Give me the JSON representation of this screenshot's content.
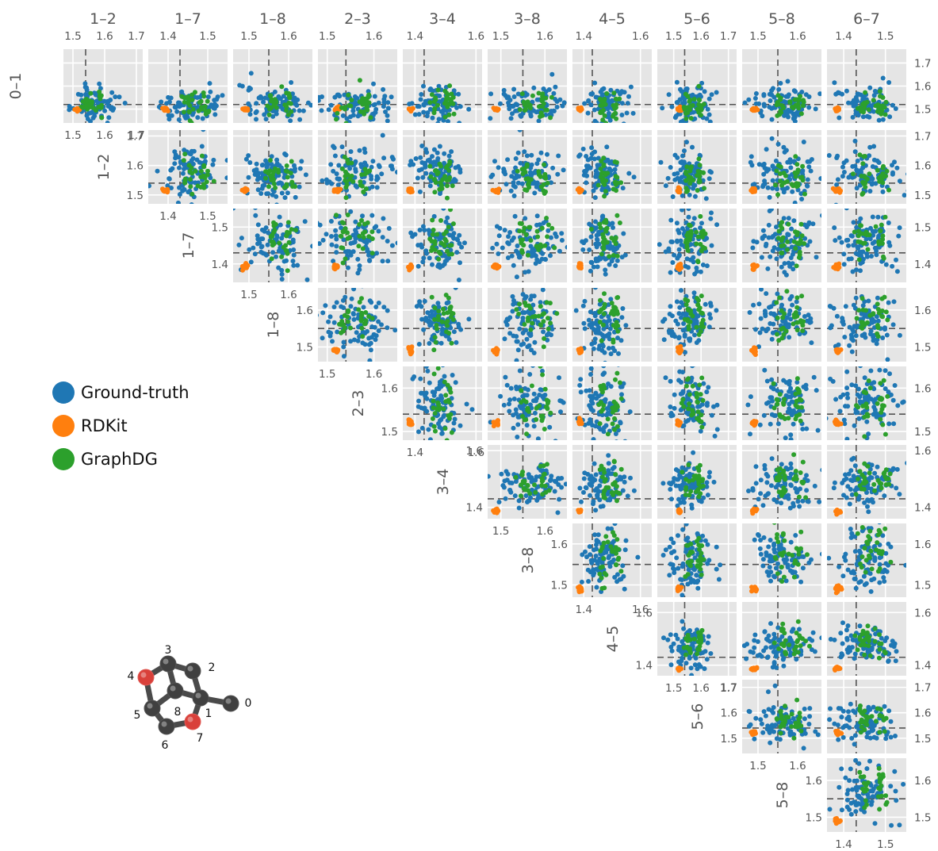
{
  "chart_data": {
    "type": "scatter",
    "bonds": [
      "0–1",
      "1–2",
      "1–7",
      "1–8",
      "2–3",
      "3–4",
      "3–8",
      "4–5",
      "5–6",
      "5–8",
      "6–7"
    ],
    "column_labels": [
      "1–2",
      "1–7",
      "1–8",
      "2–3",
      "3–4",
      "3–8",
      "4–5",
      "5–6",
      "5–8",
      "6–7"
    ],
    "row_labels": [
      "0–1",
      "1–2",
      "1–7",
      "1–8",
      "2–3",
      "3–4",
      "3–8",
      "4–5",
      "5–6",
      "5–8"
    ],
    "reference_lengths": {
      "0–1": 1.52,
      "1–2": 1.54,
      "1–7": 1.43,
      "1–8": 1.55,
      "2–3": 1.54,
      "3–4": 1.43,
      "3–8": 1.55,
      "4–5": 1.43,
      "5–6": 1.54,
      "5–8": 1.55,
      "6–7": 1.43
    },
    "axis_ranges": {
      "0–1": [
        1.44,
        1.76
      ],
      "1–2": [
        1.47,
        1.72
      ],
      "1–7": [
        1.35,
        1.55
      ],
      "1–8": [
        1.46,
        1.66
      ],
      "2–3": [
        1.48,
        1.65
      ],
      "3–4": [
        1.36,
        1.62
      ],
      "3–8": [
        1.47,
        1.65
      ],
      "4–5": [
        1.36,
        1.64
      ],
      "5–6": [
        1.44,
        1.73
      ],
      "5–8": [
        1.46,
        1.66
      ],
      "6–7": [
        1.36,
        1.55
      ]
    },
    "column_ticks": {
      "1–2": [
        "1.5",
        "1.6",
        "1.7"
      ],
      "1–7": [
        "1.4",
        "1.5"
      ],
      "1–8": [
        "1.5",
        "1.6"
      ],
      "2–3": [
        "1.5",
        "1.6"
      ],
      "3–4": [
        "1.4",
        "1.6"
      ],
      "3–8": [
        "1.5",
        "1.6"
      ],
      "4–5": [
        "1.4",
        "1.6"
      ],
      "5–6": [
        "1.5",
        "1.6",
        "1.7"
      ],
      "5–8": [
        "1.5",
        "1.6"
      ],
      "6–7": [
        "1.4",
        "1.5"
      ]
    },
    "row_ticks": {
      "0–1": [
        "1.5",
        "1.6",
        "1.7"
      ],
      "1–2": [
        "1.5",
        "1.6",
        "1.7"
      ],
      "1–7": [
        "1.4",
        "1.5"
      ],
      "1–8": [
        "1.5",
        "1.6"
      ],
      "2–3": [
        "1.5",
        "1.6"
      ],
      "3–4": [
        "1.4",
        "1.6"
      ],
      "3–8": [
        "1.5",
        "1.6"
      ],
      "4–5": [
        "1.4",
        "1.6"
      ],
      "5–6": [
        "1.5",
        "1.6",
        "1.7"
      ],
      "5–8": [
        "1.5",
        "1.6"
      ]
    },
    "series": [
      {
        "name": "Ground-truth",
        "color": "#1f77b4",
        "center": {
          "0–1": 1.52,
          "1–2": 1.575,
          "1–7": 1.455,
          "1–8": 1.565,
          "2–3": 1.565,
          "3–4": 1.48,
          "3–8": 1.565,
          "4–5": 1.47,
          "5–6": 1.56,
          "5–8": 1.565,
          "6–7": 1.455
        },
        "spread": 0.055,
        "points_per_panel": 85
      },
      {
        "name": "RDKit",
        "color": "#ff7f0e",
        "center": {
          "0–1": 1.5,
          "1–2": 1.515,
          "1–7": 1.392,
          "1–8": 1.49,
          "2–3": 1.52,
          "3–4": 1.386,
          "3–8": 1.49,
          "4–5": 1.387,
          "5–6": 1.52,
          "5–8": 1.49,
          "6–7": 1.385
        },
        "spread": 0.005,
        "points_per_panel": 14
      },
      {
        "name": "GraphDG",
        "color": "#2ca02c",
        "center": {
          "0–1": 1.52,
          "1–2": 1.56,
          "1–7": 1.47,
          "1–8": 1.58,
          "2–3": 1.56,
          "3–4": 1.49,
          "3–8": 1.575,
          "4–5": 1.49,
          "5–6": 1.575,
          "5–8": 1.58,
          "6–7": 1.47
        },
        "spread": 0.035,
        "points_per_panel": 30
      }
    ],
    "legend": {
      "position": "left-middle",
      "labels": [
        "Ground-truth",
        "RDKit",
        "GraphDG"
      ]
    },
    "grid": true,
    "xlabel": "",
    "ylabel": ""
  },
  "molecule": {
    "atoms": [
      {
        "label": "0",
        "element": "C",
        "color": "#404040"
      },
      {
        "label": "1",
        "element": "C",
        "color": "#404040"
      },
      {
        "label": "2",
        "element": "C",
        "color": "#404040"
      },
      {
        "label": "3",
        "element": "C",
        "color": "#404040"
      },
      {
        "label": "4",
        "element": "O",
        "color": "#d9403a"
      },
      {
        "label": "5",
        "element": "C",
        "color": "#404040"
      },
      {
        "label": "6",
        "element": "C",
        "color": "#404040"
      },
      {
        "label": "7",
        "element": "O",
        "color": "#d9403a"
      },
      {
        "label": "8",
        "element": "C",
        "color": "#404040"
      }
    ]
  }
}
